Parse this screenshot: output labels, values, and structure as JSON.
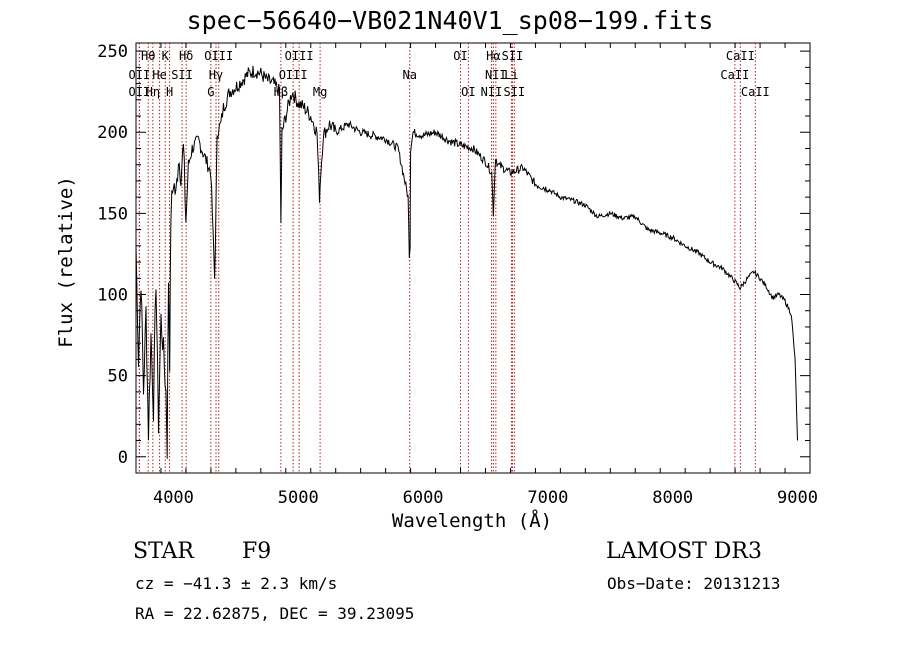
{
  "header": {
    "title": "spec−56640−VB021N40V1_sp08−199.fits"
  },
  "info": {
    "class_label": "STAR",
    "subclass": "F9",
    "survey": "LAMOST DR3",
    "cz": "cz = −41.3 ± 2.3 km/s",
    "obs_date": "Obs−Date: 20131213",
    "coords": "RA =  22.62875, DEC =  39.23095"
  },
  "chart_data": {
    "type": "line",
    "title": "spec−56640−VB021N40V1_sp08−199.fits",
    "xlabel": "Wavelength (Å)",
    "ylabel": "Flux (relative)",
    "xlim": [
      3700,
      9100
    ],
    "ylim": [
      -10,
      255
    ],
    "xticks": [
      4000,
      5000,
      6000,
      7000,
      8000,
      9000
    ],
    "yticks": [
      0,
      50,
      100,
      150,
      200,
      250
    ],
    "x_minor_step": 200,
    "y_minor_step": 10,
    "series": [
      {
        "name": "spectrum",
        "color": "#000000",
        "x": [
          3700,
          3720,
          3740,
          3760,
          3780,
          3800,
          3820,
          3840,
          3860,
          3880,
          3900,
          3920,
          3940,
          3950,
          3960,
          3970,
          3980,
          4000,
          4020,
          4040,
          4060,
          4080,
          4100,
          4120,
          4150,
          4200,
          4250,
          4300,
          4330,
          4340,
          4350,
          4380,
          4400,
          4450,
          4500,
          4550,
          4600,
          4650,
          4700,
          4750,
          4800,
          4850,
          4861,
          4870,
          4900,
          4950,
          5000,
          5050,
          5100,
          5150,
          5170,
          5180,
          5200,
          5250,
          5300,
          5400,
          5500,
          5600,
          5700,
          5800,
          5880,
          5890,
          5896,
          5900,
          5920,
          6000,
          6100,
          6200,
          6300,
          6400,
          6500,
          6550,
          6563,
          6580,
          6600,
          6700,
          6800,
          6900,
          7000,
          7100,
          7200,
          7300,
          7400,
          7500,
          7600,
          7700,
          7800,
          7900,
          8000,
          8100,
          8200,
          8300,
          8400,
          8450,
          8500,
          8540,
          8600,
          8650,
          8700,
          8750,
          8800,
          8850,
          8900,
          8950,
          8980,
          9000
        ],
        "y": [
          130,
          60,
          110,
          40,
          90,
          15,
          75,
          30,
          110,
          20,
          85,
          65,
          40,
          5,
          110,
          60,
          150,
          170,
          160,
          185,
          175,
          190,
          145,
          180,
          190,
          195,
          185,
          175,
          110,
          150,
          200,
          205,
          215,
          225,
          228,
          232,
          236,
          238,
          236,
          232,
          230,
          225,
          145,
          200,
          210,
          225,
          218,
          215,
          210,
          200,
          160,
          175,
          198,
          205,
          200,
          205,
          200,
          198,
          196,
          190,
          160,
          125,
          130,
          190,
          200,
          198,
          200,
          195,
          192,
          190,
          182,
          175,
          150,
          185,
          180,
          175,
          178,
          168,
          165,
          160,
          158,
          155,
          148,
          150,
          147,
          148,
          140,
          138,
          135,
          130,
          126,
          120,
          116,
          112,
          108,
          104,
          110,
          114,
          110,
          105,
          98,
          100,
          96,
          88,
          60,
          10
        ]
      }
    ],
    "lines": [
      {
        "label": "OII",
        "x": 3727,
        "row": 2
      },
      {
        "label": "Hθ",
        "x": 3798,
        "row": 0
      },
      {
        "label": "OII",
        "x": 3727,
        "row": 1
      },
      {
        "label": "Hη",
        "x": 3835,
        "row": 2
      },
      {
        "label": "He",
        "x": 3889,
        "row": 1
      },
      {
        "label": "K",
        "x": 3934,
        "row": 0
      },
      {
        "label": "H",
        "x": 3969,
        "row": 2
      },
      {
        "label": "SII",
        "x": 4069,
        "row": 1
      },
      {
        "label": "Hδ",
        "x": 4102,
        "row": 0
      },
      {
        "label": "G",
        "x": 4300,
        "row": 2
      },
      {
        "label": "Hγ",
        "x": 4341,
        "row": 1
      },
      {
        "label": "OIII",
        "x": 4363,
        "row": 0
      },
      {
        "label": "Hβ",
        "x": 4861,
        "row": 2
      },
      {
        "label": "OIII",
        "x": 4959,
        "row": 1
      },
      {
        "label": "OIII",
        "x": 5007,
        "row": 0
      },
      {
        "label": "Mg",
        "x": 5175,
        "row": 2
      },
      {
        "label": "Na",
        "x": 5893,
        "row": 1
      },
      {
        "label": "OI",
        "x": 6300,
        "row": 0
      },
      {
        "label": "OI",
        "x": 6363,
        "row": 2
      },
      {
        "label": "NII",
        "x": 6548,
        "row": 2
      },
      {
        "label": "Hα",
        "x": 6563,
        "row": 0
      },
      {
        "label": "NII",
        "x": 6583,
        "row": 1
      },
      {
        "label": "Li",
        "x": 6708,
        "row": 1
      },
      {
        "label": "SII",
        "x": 6716,
        "row": 0
      },
      {
        "label": "SII",
        "x": 6731,
        "row": 2
      },
      {
        "label": "CaII",
        "x": 8498,
        "row": 1
      },
      {
        "label": "CaII",
        "x": 8542,
        "row": 0
      },
      {
        "label": "CaII",
        "x": 8662,
        "row": 2
      }
    ]
  }
}
